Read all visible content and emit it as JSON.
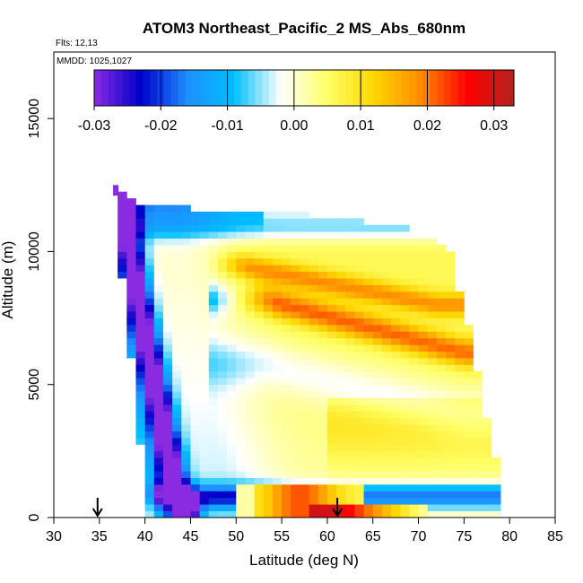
{
  "chart_data": {
    "type": "heatmap",
    "title": "ATOM3 Northeast_Pacific_2 MS_Abs_680nm",
    "flights_label": "Flts: 12,13",
    "dates_label": "MMDD: 1025,1027",
    "xlabel": "Latitude (deg N)",
    "ylabel": "Altitude (m)",
    "xlim": [
      30,
      85
    ],
    "ylim": [
      0,
      17500
    ],
    "x_ticks": [
      30,
      35,
      40,
      45,
      50,
      55,
      60,
      65,
      70,
      75,
      80,
      85
    ],
    "y_ticks": [
      0,
      5000,
      10000,
      15000
    ],
    "colorbar": {
      "range": [
        -0.03,
        0.033
      ],
      "ticks": [
        -0.03,
        -0.02,
        -0.01,
        0.0,
        0.01,
        0.02,
        0.03
      ],
      "tick_labels": [
        "-0.03",
        "-0.02",
        "-0.01",
        "0.00",
        "0.01",
        "0.02",
        "0.03"
      ],
      "colors": [
        "#8a2be2",
        "#0000c8",
        "#1e90ff",
        "#00bfff",
        "#ffffff",
        "#ffff66",
        "#ffd700",
        "#ff8c00",
        "#ff0000",
        "#b22222"
      ]
    },
    "grid": false,
    "arrows_at_latitude": [
      34.8,
      61.1
    ],
    "grid_cell_size": {
      "dlat": 1,
      "dalt": 250
    },
    "field": {
      "top_boundary_m": [
        [
          36.8,
          12400
        ],
        [
          38.5,
          11800
        ],
        [
          45,
          11600
        ],
        [
          52,
          11600
        ],
        [
          67,
          11000
        ],
        [
          70,
          10700
        ],
        [
          73,
          10000
        ],
        [
          78,
          0
        ]
      ],
      "bottom_left_boundary_m": [
        [
          36.8,
          12400
        ],
        [
          38,
          8400
        ],
        [
          39,
          5500
        ],
        [
          40,
          2000
        ],
        [
          40.5,
          500
        ]
      ],
      "right_boundary_m": [
        [
          73,
          10000
        ],
        [
          75,
          7200
        ],
        [
          76.5,
          4500
        ],
        [
          78.5,
          1500
        ],
        [
          79,
          0
        ]
      ],
      "bands": [
        {
          "description_value": -0.025,
          "path": [
            [
              37.5,
              12000
            ],
            [
              39.5,
              8000
            ],
            [
              41.5,
              4500
            ],
            [
              43.5,
              1000
            ],
            [
              44.5,
              500
            ]
          ]
        },
        {
          "description_value": -0.021,
          "path": [
            [
              38.5,
              11800
            ],
            [
              52,
              11800
            ]
          ]
        },
        {
          "description_value": -0.02,
          "path": [
            [
              41,
              1500
            ],
            [
              60,
              1800
            ],
            [
              78,
              1900
            ]
          ]
        },
        {
          "description_value": 0.012,
          "path": [
            [
              50,
              9500
            ],
            [
              72,
              8000
            ]
          ]
        },
        {
          "description_value": 0.014,
          "path": [
            [
              53,
              8200
            ],
            [
              75,
              6200
            ]
          ]
        },
        {
          "description_value": 0.02,
          "path": [
            [
              52,
              800
            ],
            [
              61,
              800
            ]
          ]
        },
        {
          "description_value": 0.026,
          "path": [
            [
              57.5,
              400
            ],
            [
              70,
              400
            ]
          ]
        }
      ]
    }
  }
}
